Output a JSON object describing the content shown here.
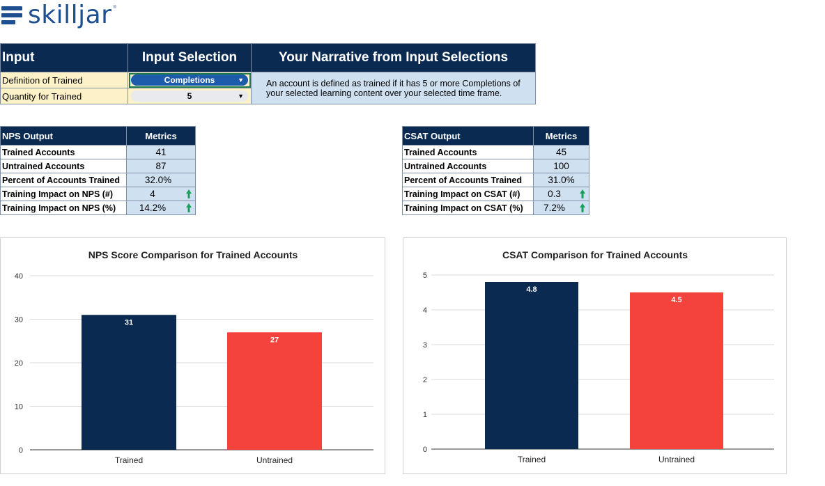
{
  "logo": {
    "text": "skilljar",
    "tm": "®"
  },
  "input_table": {
    "headers": {
      "input": "Input",
      "selection": "Input Selection",
      "narrative": "Your Narrative from Input Selections"
    },
    "rows": [
      {
        "label": "Definition of Trained",
        "value": "Completions"
      },
      {
        "label": "Quantity for Trained",
        "value": "5"
      }
    ],
    "narrative": "An account is defined as trained if it has 5 or more Completions of your selected learning content over your selected time frame."
  },
  "nps_table": {
    "header": "NPS Output",
    "metrics_header": "Metrics",
    "rows": [
      {
        "label": "Trained Accounts",
        "value": "41"
      },
      {
        "label": "Untrained Accounts",
        "value": "87"
      },
      {
        "label": "Percent of Accounts Trained",
        "value": "32.0%"
      },
      {
        "label": "Training Impact on NPS (#)",
        "value": "4"
      },
      {
        "label": "Training Impact on NPS (%)",
        "value": "14.2%"
      }
    ]
  },
  "csat_table": {
    "header": "CSAT Output",
    "metrics_header": "Metrics",
    "rows": [
      {
        "label": "Trained Accounts",
        "value": "45"
      },
      {
        "label": "Untrained Accounts",
        "value": "100"
      },
      {
        "label": "Percent of Accounts Trained",
        "value": "31.0%"
      },
      {
        "label": "Training Impact on CSAT (#)",
        "value": "0.3"
      },
      {
        "label": "Training Impact on CSAT (%)",
        "value": "7.2%"
      }
    ]
  },
  "colors": {
    "navy": "#0a2a52",
    "red": "#f4433c",
    "arrow_green": "#18a05a"
  },
  "chart_data": [
    {
      "type": "bar",
      "title": "NPS Score Comparison for Trained Accounts",
      "categories": [
        "Trained",
        "Untrained"
      ],
      "values": [
        31,
        27
      ],
      "data_labels": [
        "31",
        "27"
      ],
      "yticks": [
        "0",
        "10",
        "20",
        "30",
        "40"
      ],
      "ylim": [
        0,
        40
      ],
      "xlabel": "",
      "ylabel": "",
      "colors": [
        "#0a2a52",
        "#f4433c"
      ],
      "grid": true
    },
    {
      "type": "bar",
      "title": "CSAT Comparison for Trained Accounts",
      "categories": [
        "Trained",
        "Untrained"
      ],
      "values": [
        4.8,
        4.5
      ],
      "data_labels": [
        "4.8",
        "4.5"
      ],
      "yticks": [
        "0",
        "1",
        "2",
        "3",
        "4",
        "5"
      ],
      "ylim": [
        0,
        5
      ],
      "xlabel": "",
      "ylabel": "",
      "colors": [
        "#0a2a52",
        "#f4433c"
      ],
      "grid": true
    }
  ]
}
